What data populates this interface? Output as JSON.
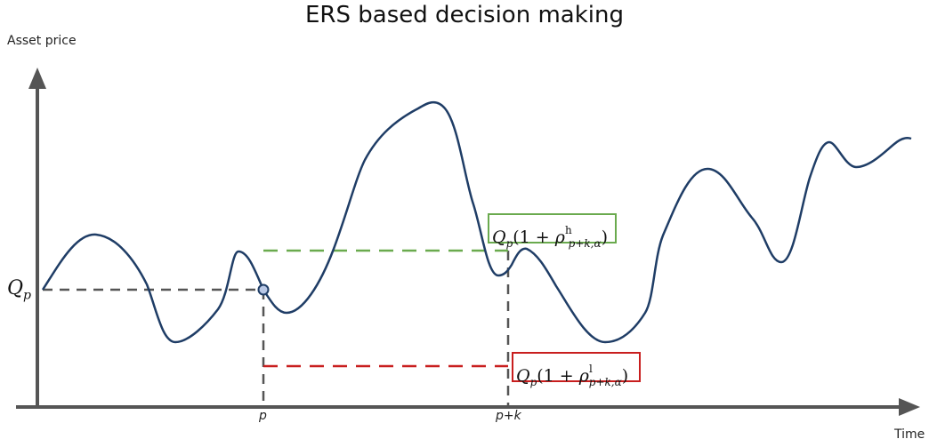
{
  "title": "ERS based decision making",
  "y_axis_label": "Asset price",
  "x_axis_label": "Time",
  "tick_labels": {
    "p": "p",
    "p_plus_k": "p+k"
  },
  "reference_price": {
    "symbol": "Q",
    "subscript": "p"
  },
  "upper_bound": {
    "symbol": "Q",
    "subscript": "p",
    "open": "(1 + ",
    "rho": "ρ",
    "superscript": "h",
    "rho_subscript": "p+k,α",
    "close": ")",
    "color": "#6aaa4e"
  },
  "lower_bound": {
    "symbol": "Q",
    "subscript": "p",
    "open": "(1 + ",
    "rho": "ρ",
    "superscript": "l",
    "rho_subscript": "p+k,α",
    "close": ")",
    "color": "#c81e1e"
  },
  "colors": {
    "price_curve": "#1f3d66",
    "axis": "#555555",
    "reference_line": "#555555"
  }
}
